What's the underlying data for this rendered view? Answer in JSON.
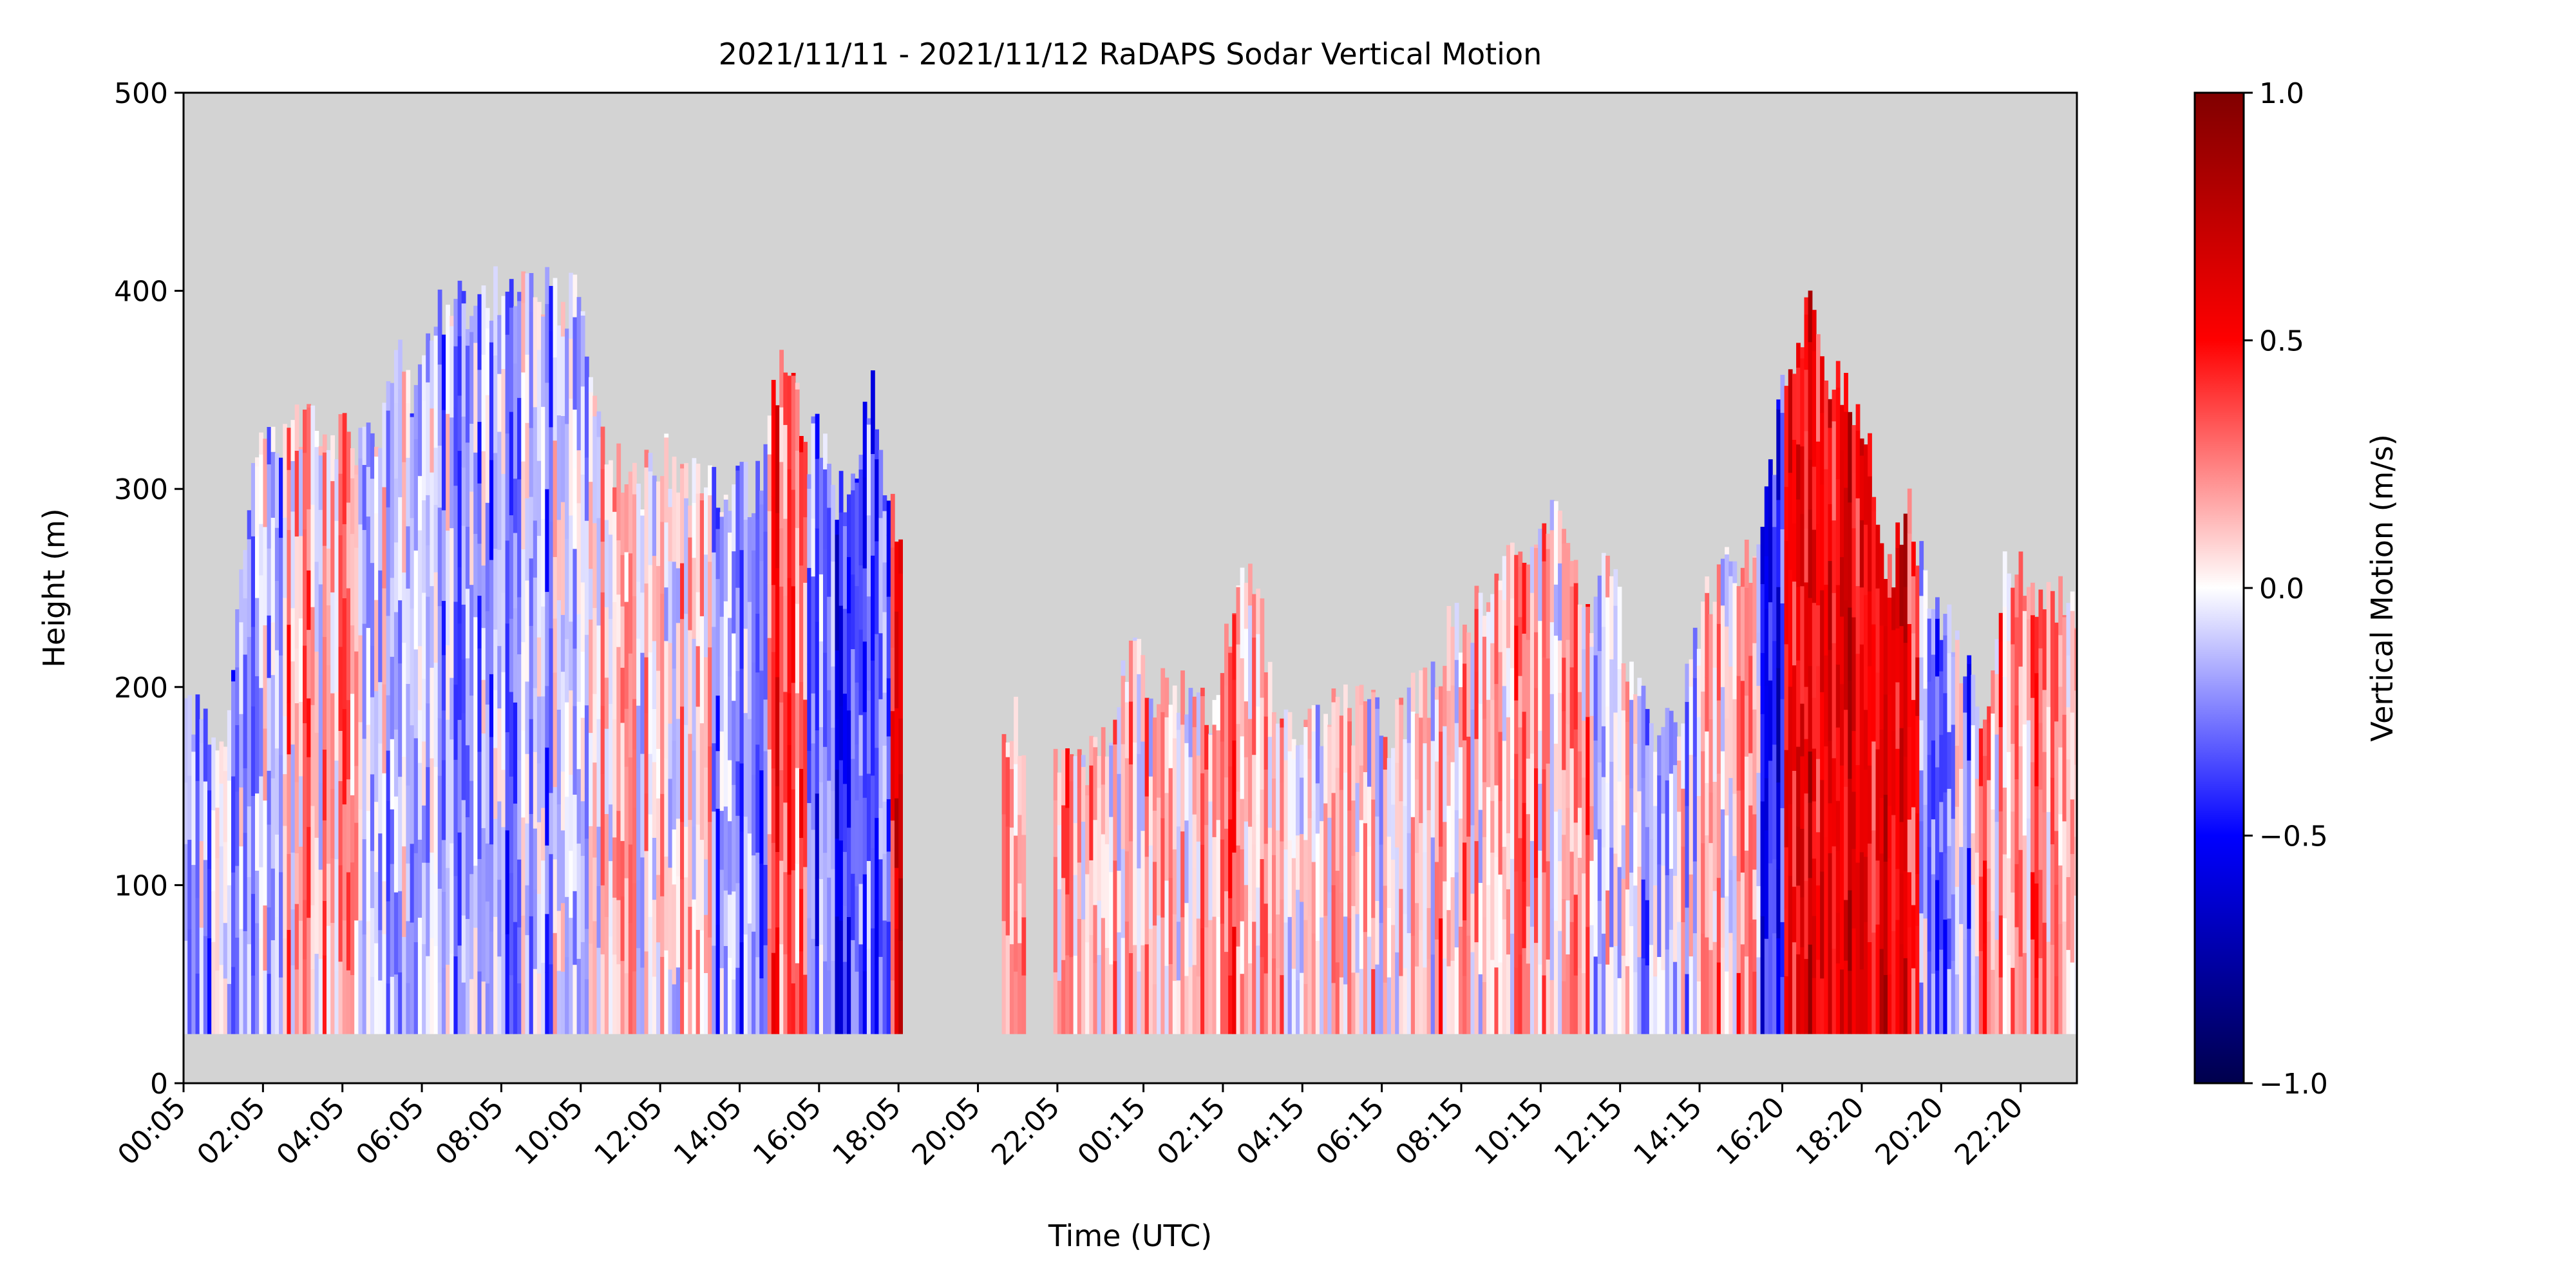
{
  "chart_data": {
    "type": "heatmap",
    "title": "2021/11/11 - 2021/11/12 RaDAPS Sodar Vertical Motion",
    "xlabel": "Time (UTC)",
    "ylabel": "Height (m)",
    "x_tick_labels": [
      "00:05",
      "02:05",
      "04:05",
      "06:05",
      "08:05",
      "10:05",
      "12:05",
      "14:05",
      "16:05",
      "18:05",
      "20:05",
      "22:05",
      "00:15",
      "02:15",
      "04:15",
      "06:15",
      "08:15",
      "10:15",
      "12:15",
      "14:15",
      "16:20",
      "18:20",
      "20:20",
      "22:20"
    ],
    "x_tick_hours": [
      0.083,
      2.083,
      4.083,
      6.083,
      8.083,
      10.083,
      12.083,
      14.083,
      16.083,
      18.083,
      20.083,
      22.083,
      24.25,
      26.25,
      28.25,
      30.25,
      32.25,
      34.25,
      36.25,
      38.25,
      40.333,
      42.333,
      44.333,
      46.333
    ],
    "xlim_hours": [
      0.083,
      47.75
    ],
    "y_ticks": [
      0,
      100,
      200,
      300,
      400,
      500
    ],
    "ylim": [
      0,
      500
    ],
    "lowest_range_gate_m": 25,
    "no_data_color": "#d3d3d3",
    "colorbar": {
      "label": "Vertical Motion (m/s)",
      "colormap": "seismic",
      "range": [
        -1.0,
        1.0
      ],
      "ticks": [
        1.0,
        0.5,
        0.0,
        -0.5,
        -1.0
      ],
      "tick_labels": [
        "1.0",
        "0.5",
        "0.0",
        "−0.5",
        "−1.0"
      ],
      "colors": {
        "min": "#00004c",
        "low": "#0000ff",
        "mid": "#ffffff",
        "high": "#ff0000",
        "max": "#800000"
      }
    },
    "column_top_heights_m": [
      {
        "hour": 0.1,
        "top": 190
      },
      {
        "hour": 0.6,
        "top": 185
      },
      {
        "hour": 1.1,
        "top": 160
      },
      {
        "hour": 1.4,
        "top": 230
      },
      {
        "hour": 1.7,
        "top": 295
      },
      {
        "hour": 2.1,
        "top": 325
      },
      {
        "hour": 2.5,
        "top": 320
      },
      {
        "hour": 3.0,
        "top": 335
      },
      {
        "hour": 3.5,
        "top": 325
      },
      {
        "hour": 4.0,
        "top": 325
      },
      {
        "hour": 4.5,
        "top": 320
      },
      {
        "hour": 5.0,
        "top": 330
      },
      {
        "hour": 5.4,
        "top": 370
      },
      {
        "hour": 5.9,
        "top": 350
      },
      {
        "hour": 6.4,
        "top": 385
      },
      {
        "hour": 6.9,
        "top": 395
      },
      {
        "hour": 7.4,
        "top": 385
      },
      {
        "hour": 8.0,
        "top": 400
      },
      {
        "hour": 8.6,
        "top": 400
      },
      {
        "hour": 9.1,
        "top": 400
      },
      {
        "hour": 9.6,
        "top": 395
      },
      {
        "hour": 10.1,
        "top": 395
      },
      {
        "hour": 10.6,
        "top": 320
      },
      {
        "hour": 11.1,
        "top": 310
      },
      {
        "hour": 11.6,
        "top": 300
      },
      {
        "hour": 12.1,
        "top": 320
      },
      {
        "hour": 12.6,
        "top": 300
      },
      {
        "hour": 13.1,
        "top": 305
      },
      {
        "hour": 13.6,
        "top": 295
      },
      {
        "hour": 14.1,
        "top": 300
      },
      {
        "hour": 14.6,
        "top": 300
      },
      {
        "hour": 15.0,
        "top": 355
      },
      {
        "hour": 15.3,
        "top": 365
      },
      {
        "hour": 15.7,
        "top": 320
      },
      {
        "hour": 16.1,
        "top": 325
      },
      {
        "hour": 16.6,
        "top": 295
      },
      {
        "hour": 17.0,
        "top": 305
      },
      {
        "hour": 17.4,
        "top": 350
      },
      {
        "hour": 17.8,
        "top": 295
      },
      {
        "hour": 18.2,
        "top": 270
      },
      {
        "hour": 18.5,
        "top": null
      },
      {
        "hour": 20.6,
        "top": null
      },
      {
        "hour": 20.7,
        "top": 175
      },
      {
        "hour": 21.0,
        "top": 185
      },
      {
        "hour": 21.3,
        "top": 170
      },
      {
        "hour": 21.4,
        "top": null
      },
      {
        "hour": 21.9,
        "top": null
      },
      {
        "hour": 22.0,
        "top": 170
      },
      {
        "hour": 22.5,
        "top": 160
      },
      {
        "hour": 23.0,
        "top": 165
      },
      {
        "hour": 23.5,
        "top": 185
      },
      {
        "hour": 24.0,
        "top": 230
      },
      {
        "hour": 24.5,
        "top": 195
      },
      {
        "hour": 25.0,
        "top": 205
      },
      {
        "hour": 25.5,
        "top": 185
      },
      {
        "hour": 26.0,
        "top": 190
      },
      {
        "hour": 26.5,
        "top": 235
      },
      {
        "hour": 27.0,
        "top": 260
      },
      {
        "hour": 27.5,
        "top": 200
      },
      {
        "hour": 28.0,
        "top": 185
      },
      {
        "hour": 28.5,
        "top": 175
      },
      {
        "hour": 29.0,
        "top": 195
      },
      {
        "hour": 29.5,
        "top": 185
      },
      {
        "hour": 30.0,
        "top": 190
      },
      {
        "hour": 30.5,
        "top": 175
      },
      {
        "hour": 31.0,
        "top": 195
      },
      {
        "hour": 31.5,
        "top": 200
      },
      {
        "hour": 32.0,
        "top": 230
      },
      {
        "hour": 32.5,
        "top": 235
      },
      {
        "hour": 33.0,
        "top": 255
      },
      {
        "hour": 33.5,
        "top": 265
      },
      {
        "hour": 34.0,
        "top": 255
      },
      {
        "hour": 34.5,
        "top": 290
      },
      {
        "hour": 35.0,
        "top": 265
      },
      {
        "hour": 35.5,
        "top": 240
      },
      {
        "hour": 36.0,
        "top": 260
      },
      {
        "hour": 36.5,
        "top": 210
      },
      {
        "hour": 37.0,
        "top": 180
      },
      {
        "hour": 37.5,
        "top": 175
      },
      {
        "hour": 38.0,
        "top": 205
      },
      {
        "hour": 38.5,
        "top": 250
      },
      {
        "hour": 39.0,
        "top": 260
      },
      {
        "hour": 39.5,
        "top": 265
      },
      {
        "hour": 40.0,
        "top": 300
      },
      {
        "hour": 40.5,
        "top": 365
      },
      {
        "hour": 41.0,
        "top": 395
      },
      {
        "hour": 41.5,
        "top": 360
      },
      {
        "hour": 42.0,
        "top": 345
      },
      {
        "hour": 42.5,
        "top": 320
      },
      {
        "hour": 43.0,
        "top": 250
      },
      {
        "hour": 43.5,
        "top": 300
      },
      {
        "hour": 44.0,
        "top": 245
      },
      {
        "hour": 44.5,
        "top": 230
      },
      {
        "hour": 45.0,
        "top": 205
      },
      {
        "hour": 45.5,
        "top": 185
      },
      {
        "hour": 46.0,
        "top": 270
      },
      {
        "hour": 46.5,
        "top": 250
      },
      {
        "hour": 47.0,
        "top": 245
      },
      {
        "hour": 47.5,
        "top": 240
      },
      {
        "hour": 47.75,
        "top": 240
      }
    ],
    "motion_regimes": [
      {
        "start_hour": 0.1,
        "end_hour": 1.6,
        "mean_w": -0.15
      },
      {
        "start_hour": 1.6,
        "end_hour": 2.6,
        "mean_w": -0.1
      },
      {
        "start_hour": 2.6,
        "end_hour": 4.6,
        "mean_w": 0.15
      },
      {
        "start_hour": 4.6,
        "end_hour": 6.0,
        "mean_w": -0.05
      },
      {
        "start_hour": 6.0,
        "end_hour": 10.6,
        "mean_w": -0.15
      },
      {
        "start_hour": 10.6,
        "end_hour": 13.4,
        "mean_w": 0.08
      },
      {
        "start_hour": 13.4,
        "end_hour": 14.8,
        "mean_w": -0.25
      },
      {
        "start_hour": 14.8,
        "end_hour": 15.8,
        "mean_w": 0.35
      },
      {
        "start_hour": 15.8,
        "end_hour": 17.9,
        "mean_w": -0.35
      },
      {
        "start_hour": 17.9,
        "end_hour": 18.4,
        "mean_w": 0.5
      },
      {
        "start_hour": 20.6,
        "end_hour": 21.4,
        "mean_w": 0.1
      },
      {
        "start_hour": 21.9,
        "end_hour": 26.0,
        "mean_w": 0.12
      },
      {
        "start_hour": 26.0,
        "end_hour": 27.6,
        "mean_w": 0.18
      },
      {
        "start_hour": 27.6,
        "end_hour": 31.6,
        "mean_w": 0.1
      },
      {
        "start_hour": 31.6,
        "end_hour": 35.6,
        "mean_w": 0.15
      },
      {
        "start_hour": 35.6,
        "end_hour": 38.2,
        "mean_w": -0.08
      },
      {
        "start_hour": 38.2,
        "end_hour": 39.8,
        "mean_w": 0.15
      },
      {
        "start_hour": 39.8,
        "end_hour": 40.4,
        "mean_w": -0.4
      },
      {
        "start_hour": 40.4,
        "end_hour": 43.8,
        "mean_w": 0.55
      },
      {
        "start_hour": 43.8,
        "end_hour": 45.2,
        "mean_w": -0.2
      },
      {
        "start_hour": 45.2,
        "end_hour": 47.75,
        "mean_w": 0.2
      }
    ]
  }
}
